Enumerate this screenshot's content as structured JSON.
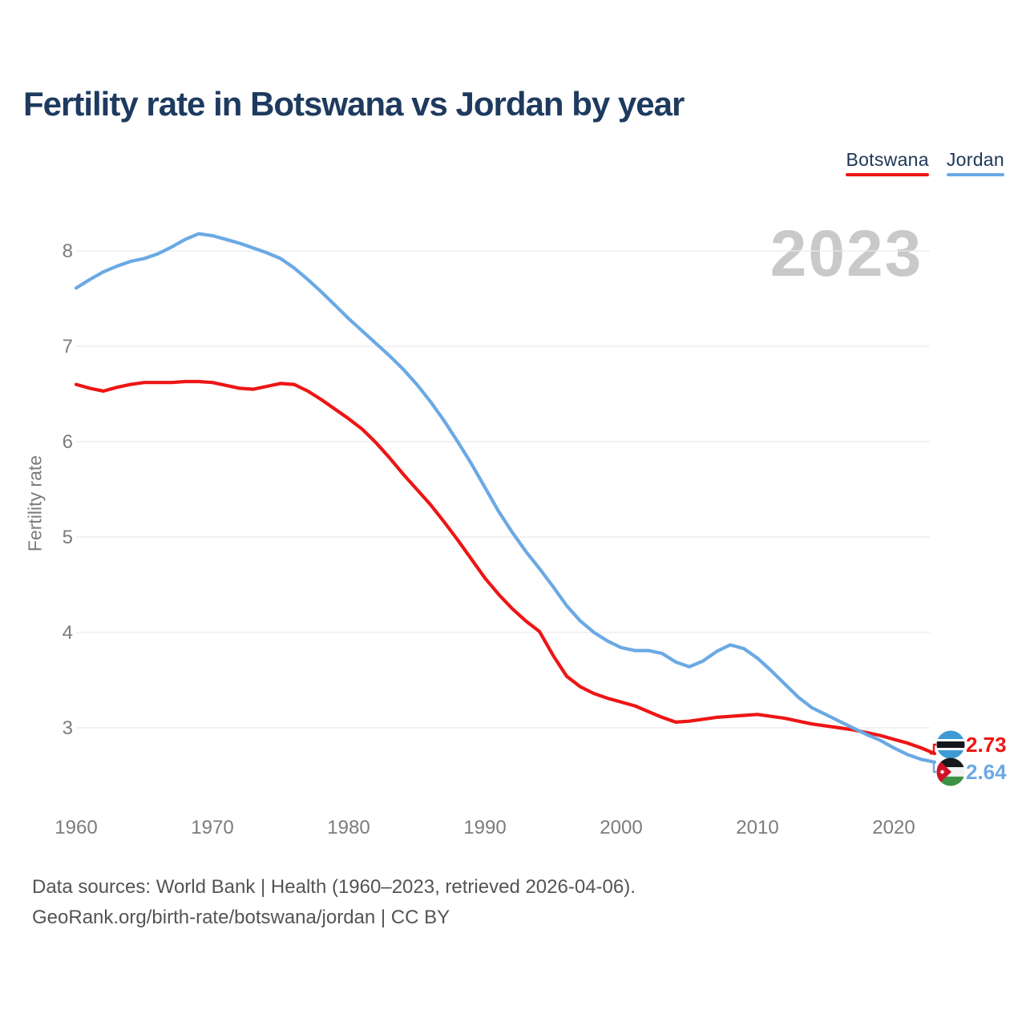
{
  "title": "Fertility rate in Botswana vs Jordan by year",
  "watermark": "2023",
  "legend": {
    "items": [
      {
        "label": "Botswana",
        "color": "#ee1515"
      },
      {
        "label": "Jordan",
        "color": "#6aa9e4"
      }
    ]
  },
  "footer": {
    "line1": "Data sources: World Bank | Health (1960–2023, retrieved 2026-04-06).",
    "line2": "GeoRank.org/birth-rate/botswana/jordan | CC BY"
  },
  "chart_data": {
    "type": "line",
    "title": "Fertility rate in Botswana vs Jordan by year",
    "xlabel": "",
    "ylabel": "Fertility rate",
    "xlim": [
      1960,
      2023
    ],
    "ylim": [
      2.5,
      8.35
    ],
    "x_ticks": [
      1960,
      1970,
      1980,
      1990,
      2000,
      2010,
      2020
    ],
    "y_ticks": [
      3,
      4,
      5,
      6,
      7,
      8
    ],
    "grid": "horizontal",
    "legend_position": "top-right",
    "x": [
      1960,
      1961,
      1962,
      1963,
      1964,
      1965,
      1966,
      1967,
      1968,
      1969,
      1970,
      1971,
      1972,
      1973,
      1974,
      1975,
      1976,
      1977,
      1978,
      1979,
      1980,
      1981,
      1982,
      1983,
      1984,
      1985,
      1986,
      1987,
      1988,
      1989,
      1990,
      1991,
      1992,
      1993,
      1994,
      1995,
      1996,
      1997,
      1998,
      1999,
      2000,
      2001,
      2002,
      2003,
      2004,
      2005,
      2006,
      2007,
      2008,
      2009,
      2010,
      2011,
      2012,
      2013,
      2014,
      2015,
      2016,
      2017,
      2018,
      2019,
      2020,
      2021,
      2022,
      2023
    ],
    "series": [
      {
        "name": "Botswana",
        "color": "#ee1515",
        "end_label": "2.73",
        "flag": "botswana",
        "values": [
          6.6,
          6.56,
          6.53,
          6.57,
          6.6,
          6.62,
          6.62,
          6.62,
          6.63,
          6.63,
          6.62,
          6.59,
          6.56,
          6.55,
          6.58,
          6.61,
          6.6,
          6.53,
          6.44,
          6.34,
          6.24,
          6.13,
          5.99,
          5.83,
          5.66,
          5.5,
          5.34,
          5.16,
          4.97,
          4.77,
          4.57,
          4.4,
          4.25,
          4.12,
          4.01,
          3.76,
          3.54,
          3.43,
          3.36,
          3.31,
          3.27,
          3.23,
          3.17,
          3.11,
          3.06,
          3.07,
          3.09,
          3.11,
          3.12,
          3.13,
          3.14,
          3.12,
          3.1,
          3.07,
          3.04,
          3.02,
          3.0,
          2.98,
          2.95,
          2.92,
          2.88,
          2.84,
          2.79,
          2.73
        ]
      },
      {
        "name": "Jordan",
        "color": "#6aa9e4",
        "end_label": "2.64",
        "flag": "jordan",
        "values": [
          7.61,
          7.7,
          7.78,
          7.84,
          7.89,
          7.92,
          7.97,
          8.04,
          8.12,
          8.18,
          8.16,
          8.12,
          8.08,
          8.03,
          7.98,
          7.92,
          7.82,
          7.7,
          7.57,
          7.43,
          7.29,
          7.16,
          7.03,
          6.9,
          6.76,
          6.6,
          6.42,
          6.22,
          6.0,
          5.77,
          5.52,
          5.27,
          5.05,
          4.85,
          4.67,
          4.48,
          4.28,
          4.12,
          4.0,
          3.91,
          3.84,
          3.81,
          3.81,
          3.78,
          3.69,
          3.64,
          3.7,
          3.8,
          3.87,
          3.83,
          3.73,
          3.6,
          3.46,
          3.32,
          3.21,
          3.14,
          3.07,
          3.0,
          2.93,
          2.87,
          2.79,
          2.72,
          2.67,
          2.64
        ]
      }
    ]
  }
}
